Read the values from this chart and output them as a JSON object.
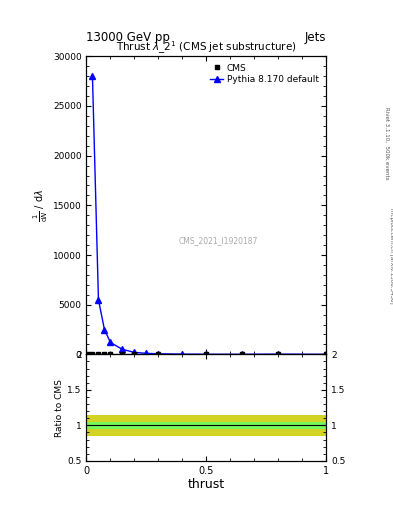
{
  "title_center": "13000 GeV pp",
  "title_right": "Jets",
  "plot_title": "Thrust $\\lambda\\_2^1$ (CMS jet substructure)",
  "watermark": "CMS_2021_I1920187",
  "xlabel": "thrust",
  "ylabel_parts": [
    "$\\frac{1}{\\mathrm{d}N}$",
    "$/$ $\\mathrm{d}\\lambda$"
  ],
  "ylabel_ratio": "Ratio to CMS",
  "right_label": "Rivet 3.1.10,  500k events",
  "right_label2": "mcplots.cern.ch [arXiv:1306.3436]",
  "cms_x": [
    0.005,
    0.025,
    0.05,
    0.075,
    0.1,
    0.15,
    0.2,
    0.3,
    0.5,
    0.65,
    0.8,
    1.0
  ],
  "cms_y": [
    30,
    40,
    50,
    50,
    40,
    30,
    30,
    20,
    10,
    5,
    20,
    5
  ],
  "pythia_x": [
    0.025,
    0.05,
    0.075,
    0.1,
    0.15,
    0.2,
    0.25,
    0.3,
    0.4,
    0.5,
    0.65,
    0.8,
    1.0
  ],
  "pythia_y": [
    28000,
    5500,
    2500,
    1200,
    500,
    200,
    100,
    60,
    20,
    10,
    5,
    20,
    5
  ],
  "ylim_main": [
    0,
    30000
  ],
  "ylim_ratio": [
    0.5,
    2.0
  ],
  "xlim": [
    0.0,
    1.0
  ],
  "yticks_main": [
    0,
    5000,
    10000,
    15000,
    20000,
    25000,
    30000
  ],
  "yticks_ratio": [
    0.5,
    1.0,
    1.5,
    2.0
  ],
  "cms_color": "black",
  "pythia_color": "blue",
  "ratio_line_color": "black",
  "ratio_band_green": "#66ff66",
  "ratio_band_yellow": "#cccc00",
  "legend_cms": "CMS",
  "legend_pythia": "Pythia 8.170 default"
}
